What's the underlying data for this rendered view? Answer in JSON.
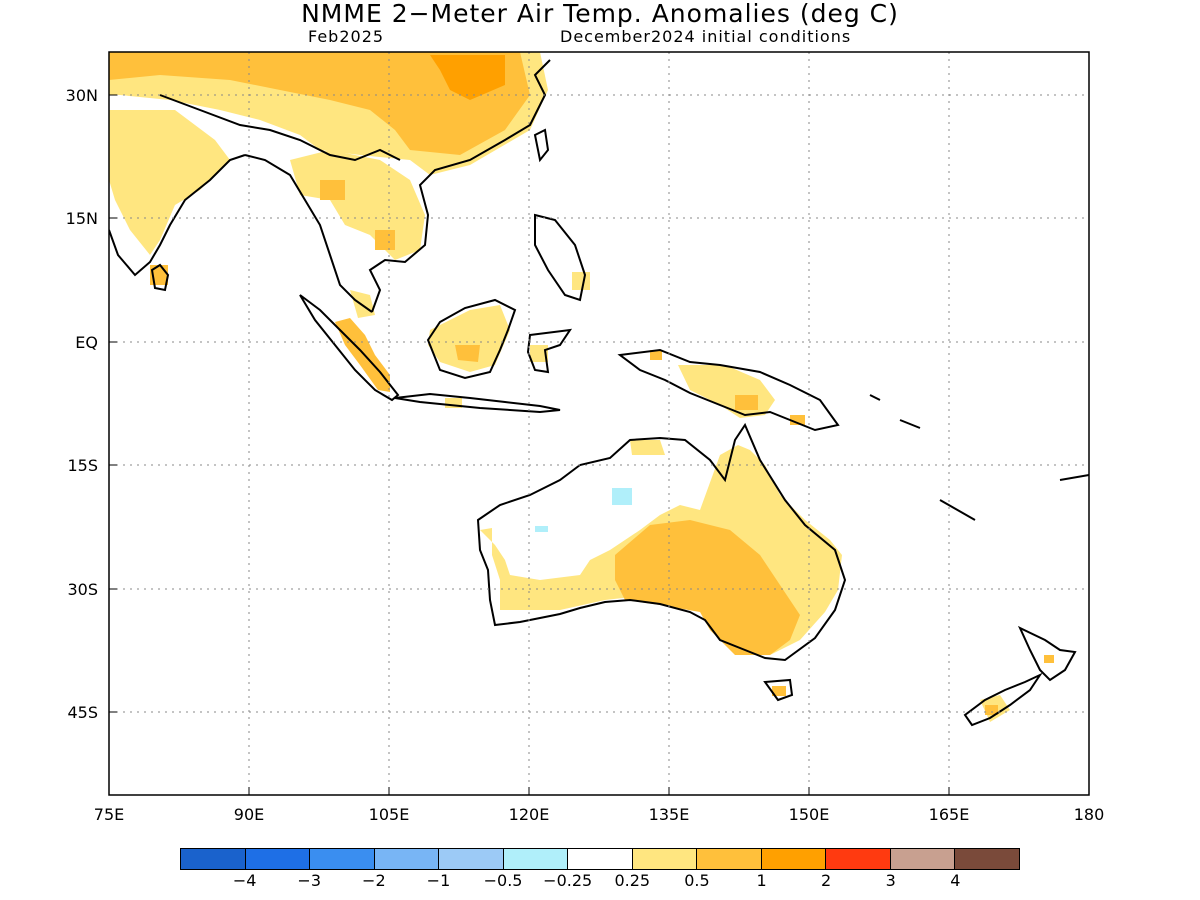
{
  "header": {
    "title": "NMME 2−Meter Air Temp. Anomalies (deg C)",
    "target_month": "Feb2025",
    "initial_conditions": "December2024 initial conditions"
  },
  "map": {
    "region": "Indian Ocean / Maritime Continent / Australia",
    "lon_range": [
      75,
      180
    ],
    "lat_range": [
      -55,
      35
    ],
    "x_ticks": [
      "75E",
      "90E",
      "105E",
      "120E",
      "135E",
      "150E",
      "165E",
      "180"
    ],
    "y_ticks": [
      "30N",
      "15N",
      "EQ",
      "15S",
      "30S",
      "45S"
    ],
    "grid": "dotted",
    "anomaly_regions": [
      {
        "name": "Southern China",
        "category": "1 to 2"
      },
      {
        "name": "Mainland Southeast Asia",
        "category": "0.25 to 0.5"
      },
      {
        "name": "India",
        "category": "0.25 to 0.5"
      },
      {
        "name": "Borneo",
        "category": "0.25 to 0.5"
      },
      {
        "name": "Sumatra",
        "category": "0.5 to 1"
      },
      {
        "name": "New Guinea",
        "category": "0.25 to 0.5"
      },
      {
        "name": "Central / South Australia",
        "category": "0.5 to 1"
      },
      {
        "name": "Australia periphery",
        "category": "0.25 to 0.5"
      },
      {
        "name": "Northwest Australia interior",
        "category": "-0.5 to -0.25"
      },
      {
        "name": "New Zealand South Island",
        "category": "0.5 to 1"
      }
    ]
  },
  "legend": {
    "colors": [
      "#1a62cc",
      "#1e6fe6",
      "#3a8ef0",
      "#78b5f5",
      "#9ccaf6",
      "#b0effa",
      "#ffffff",
      "#ffe680",
      "#ffc03b",
      "#ffa000",
      "#ff3a10",
      "#c8a090",
      "#7a4a3a"
    ],
    "labels": [
      "−4",
      "−3",
      "−2",
      "−1",
      "−0.5",
      "−0.25",
      "0.25",
      "0.5",
      "1",
      "2",
      "3",
      "4"
    ]
  }
}
